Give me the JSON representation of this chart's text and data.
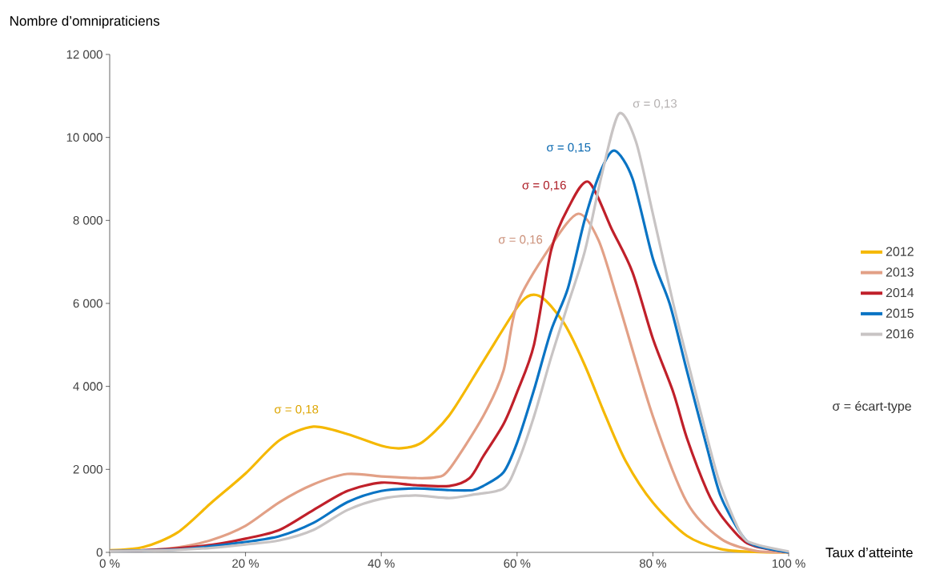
{
  "chart_data": {
    "type": "line",
    "xlabel": "Taux d’atteinte",
    "ylabel": "Nombre d’omnipraticiens",
    "xlim": [
      0,
      100
    ],
    "ylim": [
      0,
      12000
    ],
    "xticks": [
      {
        "value": 0,
        "label": "0 %"
      },
      {
        "value": 20,
        "label": "20 %"
      },
      {
        "value": 40,
        "label": "40 %"
      },
      {
        "value": 60,
        "label": "60 %"
      },
      {
        "value": 80,
        "label": "80 %"
      },
      {
        "value": 100,
        "label": "100 %"
      }
    ],
    "yticks": [
      0,
      {
        "value": 2000,
        "label": "2 000"
      },
      {
        "value": 4000,
        "label": "4 000"
      },
      {
        "value": 6000,
        "label": "6 000"
      },
      {
        "value": 8000,
        "label": "8 000"
      },
      {
        "value": 10000,
        "label": "10 000"
      },
      {
        "value": 12000,
        "label": "12 000"
      }
    ],
    "legend": "right",
    "grid": false,
    "marker": "none",
    "line_style": "solid",
    "series": [
      {
        "name": "2012",
        "color": "#f5b800",
        "x": [
          0,
          5,
          10,
          15,
          20,
          25,
          30,
          35,
          40,
          43,
          46,
          50,
          55,
          60,
          62,
          64,
          67,
          70,
          73,
          76,
          80,
          85,
          90,
          95,
          100
        ],
        "values": [
          50,
          130,
          480,
          1200,
          1900,
          2700,
          3030,
          2850,
          2570,
          2510,
          2650,
          3300,
          4600,
          5900,
          6200,
          6100,
          5500,
          4500,
          3300,
          2200,
          1200,
          400,
          80,
          10,
          0
        ]
      },
      {
        "name": "2013",
        "color": "#e2a086",
        "x": [
          0,
          5,
          10,
          15,
          20,
          25,
          30,
          35,
          40,
          45,
          48,
          50,
          55,
          58,
          60,
          65,
          69,
          72,
          75,
          80,
          85,
          90,
          95,
          100
        ],
        "values": [
          30,
          50,
          120,
          300,
          640,
          1210,
          1640,
          1890,
          1830,
          1790,
          1810,
          2000,
          3280,
          4380,
          5980,
          7390,
          8160,
          7520,
          5980,
          3280,
          1210,
          330,
          40,
          0
        ]
      },
      {
        "name": "2014",
        "color": "#c0202a",
        "x": [
          0,
          5,
          10,
          15,
          20,
          25,
          30,
          35,
          40,
          45,
          50,
          53,
          55,
          58,
          60,
          62.5,
          65,
          67.5,
          70.5,
          74,
          77,
          80,
          83,
          85,
          88,
          90,
          93,
          95,
          100
        ],
        "values": [
          30,
          50,
          100,
          180,
          330,
          540,
          1020,
          1480,
          1680,
          1620,
          1600,
          1790,
          2310,
          3090,
          3860,
          5010,
          7270,
          8290,
          8930,
          7770,
          6750,
          5150,
          3860,
          2760,
          1480,
          900,
          330,
          150,
          0
        ]
      },
      {
        "name": "2015",
        "color": "#0a74c4",
        "x": [
          0,
          5,
          10,
          15,
          20,
          25,
          30,
          35,
          40,
          45,
          50,
          53.5,
          55,
          58,
          60,
          62.5,
          65,
          67.5,
          70,
          72.5,
          74.4,
          77,
          80,
          82.5,
          85,
          88,
          90,
          93,
          95,
          100
        ],
        "values": [
          30,
          null,
          70,
          150,
          250,
          390,
          710,
          1210,
          1480,
          1540,
          1500,
          1500,
          1600,
          1930,
          2640,
          3920,
          5340,
          6370,
          8040,
          9260,
          9680,
          9010,
          7080,
          5980,
          4380,
          2510,
          1350,
          440,
          170,
          0
        ]
      },
      {
        "name": "2016",
        "color": "#c8c4c4",
        "x": [
          0,
          5,
          10,
          15,
          20,
          25,
          30,
          35,
          40,
          45,
          50,
          53.5,
          58,
          60,
          62.5,
          65,
          67.5,
          70,
          72.5,
          75,
          77.5,
          80,
          83,
          85,
          88,
          90,
          93,
          95,
          100
        ],
        "values": [
          30,
          40,
          60,
          110,
          190,
          290,
          540,
          1020,
          1290,
          1370,
          1310,
          1390,
          1540,
          2120,
          3280,
          4690,
          5980,
          7270,
          9120,
          10570,
          9900,
          8160,
          6000,
          4690,
          2760,
          1600,
          440,
          200,
          20
        ]
      }
    ],
    "annotations": [
      "σ = 0,18",
      "σ = 0,16",
      "σ = 0,16",
      "σ = 0,15",
      "σ = 0,13",
      "σ = écart-type"
    ]
  }
}
